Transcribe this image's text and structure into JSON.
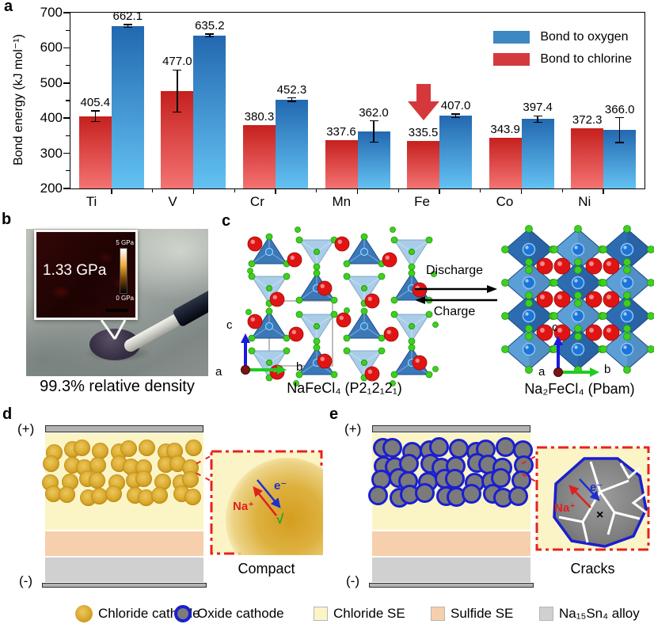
{
  "chart_data": {
    "type": "bar",
    "categories": [
      "Ti",
      "V",
      "Cr",
      "Mn",
      "Fe",
      "Co",
      "Ni"
    ],
    "series": [
      {
        "name": "Bond to chlorine",
        "values": [
          405.4,
          477.0,
          380.3,
          337.6,
          335.5,
          343.9,
          372.3
        ],
        "labels": [
          "405.4",
          "477.0",
          "380.3",
          "337.6",
          "335.5",
          "343.9",
          "372.3"
        ],
        "errors": [
          15,
          60,
          0,
          0,
          0,
          0,
          0
        ],
        "bar_color_top": "#c5201e",
        "bar_color_bottom": "#f47373"
      },
      {
        "name": "Bond to oxygen",
        "values": [
          662.1,
          635.2,
          452.3,
          362.0,
          407.0,
          397.4,
          366.0
        ],
        "labels": [
          "662.1",
          "635.2",
          "452.3",
          "362.0",
          "407.0",
          "397.4",
          "366.0"
        ],
        "errors": [
          4,
          4,
          5,
          30,
          5,
          9,
          35
        ],
        "bar_color_top": "#2368b0",
        "bar_color_bottom": "#63c2f2"
      }
    ],
    "legend": [
      {
        "label": "Bond to oxygen",
        "color": "#3d87c2"
      },
      {
        "label": "Bond to chlorine",
        "color": "#d43a3c"
      }
    ],
    "ylabel": "Bond energy (kJ mol⁻¹)",
    "ylim": [
      200,
      700
    ],
    "yticks": [
      200,
      300,
      400,
      500,
      600,
      700
    ],
    "legend_position": "top-right",
    "annotation": {
      "type": "down-arrow",
      "category": "Fe",
      "color": "#d5383b"
    }
  },
  "panels": {
    "a": {
      "label": "a"
    },
    "b": {
      "label": "b",
      "inset_pressure": "1.33 GPa",
      "scale_max": "5 GPa",
      "scale_min": "0 GPa",
      "caption": "99.3% relative density"
    },
    "c": {
      "label": "c",
      "discharge": "Discharge",
      "charge": "Charge",
      "left_formula": "NaFeCl₄ (P2₁2₁2₁)",
      "right_formula": "Na₂FeCl₄ (Pbam)",
      "axis": {
        "a": "a",
        "b": "b",
        "c": "c"
      }
    },
    "d": {
      "label": "d",
      "electrode_plus": "(+)",
      "electrode_minus": "(-)",
      "na_ion": "Na⁺",
      "electron": "e⁻",
      "check": "√",
      "caption": "Compact"
    },
    "e": {
      "label": "e",
      "electrode_plus": "(+)",
      "electrode_minus": "(-)",
      "na_ion": "Na⁺",
      "electron": "e⁻",
      "cross": "×",
      "caption": "Cracks"
    }
  },
  "bottom_legend": {
    "items": [
      {
        "label": "Chloride cathode",
        "swatch": "gold-circle",
        "color": "#d7a62f"
      },
      {
        "label": "Oxide cathode",
        "swatch": "gray-circle-blue-ring",
        "color": "#7b7b7b"
      },
      {
        "label": "Chloride SE",
        "swatch": "square",
        "color": "#fbf5c6"
      },
      {
        "label": "Sulfide SE",
        "swatch": "square",
        "color": "#f6cfad"
      },
      {
        "label": "Na₁₅Sn₄ alloy",
        "swatch": "square",
        "color": "#d0d0d0"
      }
    ]
  },
  "colors": {
    "na_red": "#e11414",
    "cl_green": "#3fd01f",
    "fe_blue": "#1b74d8",
    "tetra_light": "#a9cde9",
    "tetra_dark": "#3a78b8",
    "octa_light": "#5c9fd6",
    "octa_dark": "#2e6cb2",
    "chloride_se": "#fbf5c6",
    "sulfide_se": "#f6cfad",
    "alloy": "#d0d0d0",
    "inset_border_red": "#e8221c",
    "oxide_ring_blue": "#1a1fd0"
  }
}
